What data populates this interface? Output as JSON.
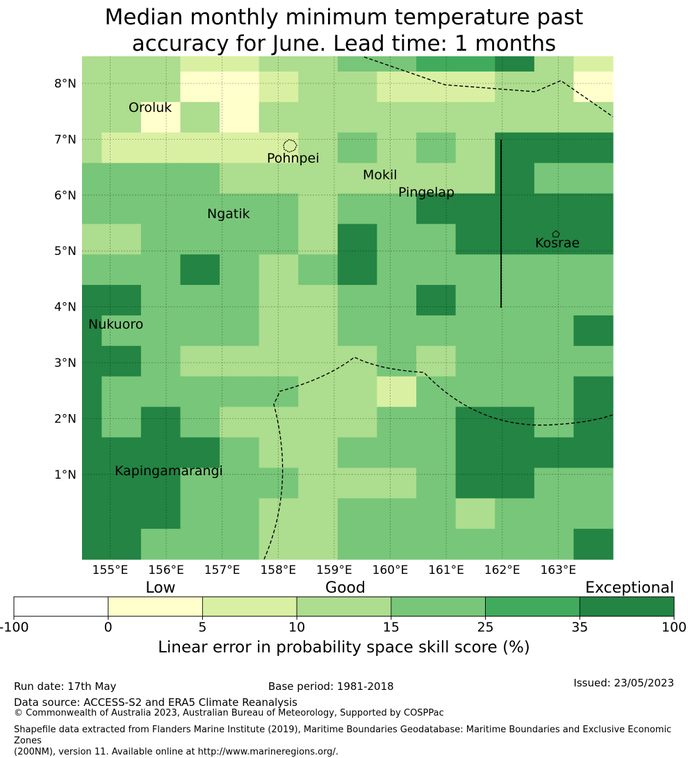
{
  "title_line1": "Median monthly minimum temperature past",
  "title_line2": "accuracy for June. Lead time: 1 months",
  "x_ticks": [
    "155°E",
    "156°E",
    "157°E",
    "158°E",
    "159°E",
    "160°E",
    "161°E",
    "162°E",
    "163°E"
  ],
  "y_ticks": [
    "8°N",
    "7°N",
    "6°N",
    "5°N",
    "4°N",
    "3°N",
    "2°N",
    "1°N"
  ],
  "places": {
    "oroluk": "Oroluk",
    "pohnpei": "Pohnpei",
    "mokil": "Mokil",
    "pingelap": "Pingelap",
    "ngatik": "Ngatik",
    "kosrae": "Kosrae",
    "nukuoro": "Nukuoro",
    "kapingamarangi": "Kapingamarangi"
  },
  "colorbar": {
    "category_labels": {
      "low": "Low",
      "good": "Good",
      "exceptional": "Exceptional"
    },
    "ticks": [
      "-100",
      "0",
      "5",
      "10",
      "15",
      "25",
      "35",
      "100"
    ],
    "colors": [
      "#ffffff",
      "#ffffcc",
      "#d9f0a3",
      "#addd8e",
      "#78c679",
      "#41ab5d",
      "#238443"
    ],
    "title": "Linear error in probability space skill score (%)"
  },
  "footer": {
    "run_date": "Run date: 17th May",
    "base_period": "Base period: 1981-2018",
    "issued": "Issued: 23/05/2023",
    "data_source": "Data source: ACCESS-S2 and ERA5 Climate Reanalysis",
    "copyright": "© Commonwealth of Australia 2023, Australian Bureau of Meteorology, Supported by COSPPac",
    "shapefile_line1": "Shapefile data extracted from Flanders Marine Institute (2019), Maritime Boundaries Geodatabase: Maritime Boundaries and Exclusive Economic Zones",
    "shapefile_line2": "(200NM), version 11. Available online at http://www.marineregions.org/."
  },
  "grid_levels": [
    [
      3,
      3,
      3,
      2,
      2,
      3,
      3,
      4,
      4,
      5,
      5,
      6,
      3,
      2
    ],
    [
      3,
      3,
      3,
      1,
      1,
      2,
      3,
      3,
      2,
      2,
      2,
      3,
      3,
      1
    ],
    [
      3,
      3,
      1,
      3,
      1,
      3,
      3,
      3,
      3,
      3,
      3,
      3,
      3,
      3
    ],
    [
      3,
      2,
      2,
      2,
      2,
      2,
      3,
      4,
      3,
      4,
      3,
      6,
      6,
      6
    ],
    [
      4,
      4,
      4,
      4,
      3,
      3,
      3,
      3,
      3,
      3,
      3,
      6,
      4,
      4
    ],
    [
      4,
      4,
      4,
      4,
      4,
      4,
      3,
      4,
      4,
      6,
      6,
      6,
      6,
      6
    ],
    [
      3,
      3,
      4,
      4,
      4,
      4,
      3,
      6,
      4,
      4,
      6,
      6,
      6,
      6
    ],
    [
      4,
      4,
      4,
      6,
      4,
      3,
      4,
      6,
      4,
      4,
      4,
      4,
      4,
      4
    ],
    [
      6,
      6,
      4,
      4,
      4,
      3,
      3,
      4,
      4,
      6,
      4,
      4,
      4,
      4
    ],
    [
      6,
      4,
      4,
      4,
      4,
      3,
      3,
      4,
      4,
      4,
      4,
      4,
      4,
      6
    ],
    [
      6,
      6,
      4,
      3,
      3,
      3,
      3,
      3,
      4,
      3,
      4,
      4,
      4,
      4
    ],
    [
      6,
      4,
      4,
      4,
      4,
      4,
      3,
      3,
      2,
      4,
      4,
      4,
      4,
      6
    ],
    [
      6,
      4,
      6,
      4,
      3,
      3,
      3,
      3,
      4,
      4,
      6,
      6,
      4,
      6
    ],
    [
      6,
      6,
      6,
      6,
      4,
      3,
      3,
      4,
      4,
      4,
      6,
      6,
      6,
      6
    ],
    [
      6,
      6,
      6,
      4,
      4,
      4,
      3,
      3,
      3,
      4,
      6,
      6,
      4,
      4
    ],
    [
      6,
      6,
      6,
      4,
      4,
      3,
      3,
      4,
      4,
      4,
      3,
      4,
      4,
      4
    ],
    [
      6,
      6,
      4,
      4,
      4,
      3,
      3,
      4,
      4,
      4,
      4,
      4,
      4,
      6
    ]
  ]
}
